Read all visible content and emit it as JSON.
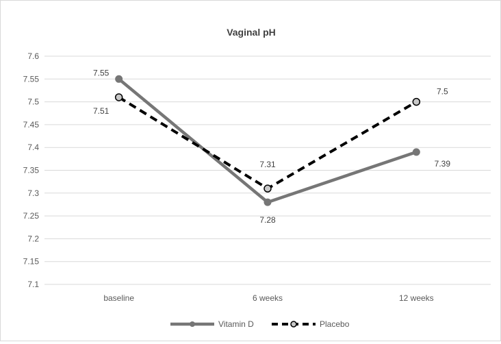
{
  "chart_data": {
    "type": "line",
    "title": "Vaginal pH",
    "categories": [
      "baseline",
      "6 weeks",
      "12 weeks"
    ],
    "ylim": [
      7.1,
      7.6
    ],
    "yticks": [
      7.1,
      7.15,
      7.2,
      7.25,
      7.3,
      7.35,
      7.4,
      7.45,
      7.5,
      7.55,
      7.6
    ],
    "ytick_labels": [
      "7.1",
      "7.15",
      "7.2",
      "7.25",
      "7.3",
      "7.35",
      "7.4",
      "7.45",
      "7.5",
      "7.55",
      "7.6"
    ],
    "grid": true,
    "legend_position": "bottom",
    "series": [
      {
        "name": "Vitamin D",
        "values": [
          7.55,
          7.28,
          7.39
        ],
        "labels": [
          "7.55",
          "7.28",
          "7.39"
        ],
        "color": "#767676",
        "style": "solid"
      },
      {
        "name": "Placebo",
        "values": [
          7.51,
          7.31,
          7.5
        ],
        "labels": [
          "7.51",
          "7.31",
          "7.5"
        ],
        "color": "#000000",
        "style": "dashed"
      }
    ]
  }
}
